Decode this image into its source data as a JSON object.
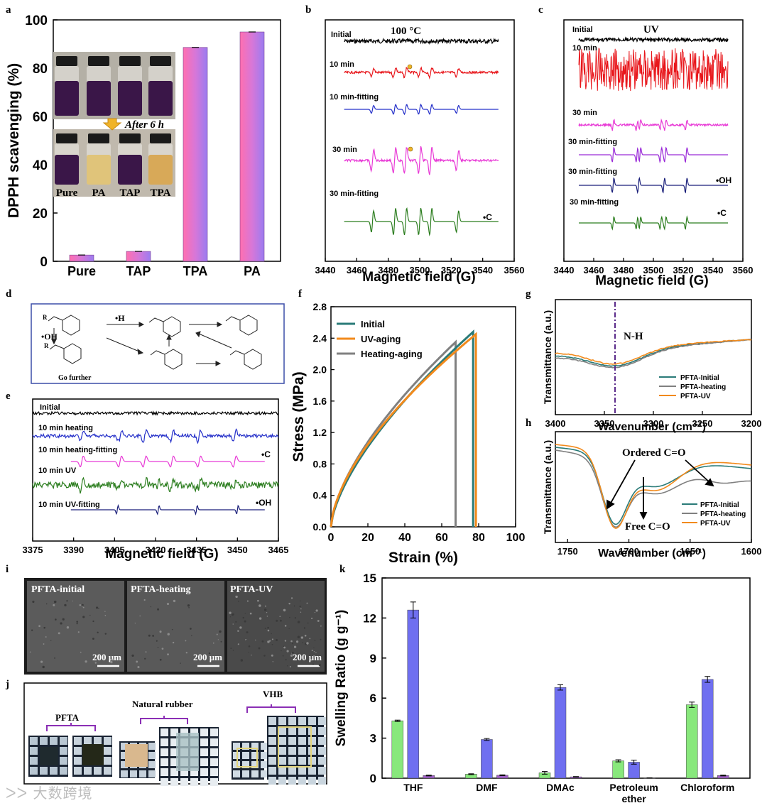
{
  "colors": {
    "bar_gradient_top": "#9b7cf0",
    "bar_gradient_bottom": "#ff6fb0",
    "black": "#000000",
    "red": "#e8161b",
    "blue": "#2530c9",
    "magenta": "#e83ad6",
    "green": "#2b7d1e",
    "purple": "#9a2bd8",
    "navy": "#1a1f7a",
    "teal": "#2a7b78",
    "orange": "#f28a1c",
    "gray": "#808080",
    "k_green": "#88e87c",
    "k_blue": "#6f6ff0",
    "k_purple": "#a060c8",
    "scheme_border": "#3b4ea8",
    "frame_purple": "#8b2fb5"
  },
  "chart_data": [
    {
      "panel": "a",
      "type": "bar",
      "categories": [
        "Pure",
        "TAP",
        "TPA",
        "PA"
      ],
      "values": [
        2.6,
        4.1,
        88.6,
        95.0
      ],
      "ylabel": "DPPH scavenging (%)",
      "ylim": [
        0,
        100
      ],
      "yticks": [
        0,
        20,
        40,
        60,
        80,
        100
      ],
      "inset": {
        "caption": "After 6 h",
        "vial_labels": [
          "Pure",
          "PA",
          "TAP",
          "TPA"
        ]
      }
    },
    {
      "panel": "b",
      "type": "line",
      "title": "100 °C",
      "xlabel": "Magnetic field (G)",
      "xlim": [
        3440,
        3560
      ],
      "xticks": [
        3440,
        3460,
        3480,
        3500,
        3520,
        3540,
        3560
      ],
      "series": [
        {
          "name": "Initial",
          "color": "#000000"
        },
        {
          "name": "10 min",
          "color": "#e8161b"
        },
        {
          "name": "10 min-fitting",
          "color": "#2530c9"
        },
        {
          "name": "30 min",
          "color": "#e83ad6"
        },
        {
          "name": "30 min-fitting",
          "color": "#2b7d1e"
        }
      ],
      "annotation": "•C"
    },
    {
      "panel": "c",
      "type": "line",
      "title": "UV",
      "xlabel": "Magnetic field (G)",
      "xlim": [
        3440,
        3560
      ],
      "xticks": [
        3440,
        3460,
        3480,
        3500,
        3520,
        3540,
        3560
      ],
      "series": [
        {
          "name": "Initial",
          "color": "#000000"
        },
        {
          "name": "10 min",
          "color": "#e8161b"
        },
        {
          "name": "30 min",
          "color": "#e83ad6"
        },
        {
          "name": "30 min-fitting",
          "color": "#9a2bd8"
        },
        {
          "name": "30 min-fitting",
          "color": "#1a1f7a"
        },
        {
          "name": "30 min-fitting",
          "color": "#2b7d1e"
        }
      ],
      "annotations": [
        "•OH",
        "•C"
      ]
    },
    {
      "panel": "e",
      "type": "line",
      "xlabel": "Magnetic field (G)",
      "xlim": [
        3375,
        3465
      ],
      "xticks": [
        3375,
        3390,
        3405,
        3420,
        3435,
        3450,
        3465
      ],
      "series": [
        {
          "name": "Initial",
          "color": "#000000"
        },
        {
          "name": "10 min heating",
          "color": "#2530c9"
        },
        {
          "name": "10 min heating-fitting",
          "color": "#e83ad6"
        },
        {
          "name": "10 min UV",
          "color": "#2b7d1e"
        },
        {
          "name": "10 min UV-fitting",
          "color": "#1a1f7a"
        }
      ],
      "annotations": [
        "•C",
        "•OH"
      ]
    },
    {
      "panel": "f",
      "type": "line",
      "xlabel": "Strain (%)",
      "ylabel": "Stress (MPa)",
      "xlim": [
        0,
        100
      ],
      "ylim": [
        0,
        2.8
      ],
      "xticks": [
        0,
        20,
        40,
        60,
        80,
        100
      ],
      "yticks": [
        0.0,
        0.4,
        0.8,
        1.2,
        1.6,
        2.0,
        2.4,
        2.8
      ],
      "series": [
        {
          "name": "Initial",
          "color": "#2a7b78",
          "break_strain": 77,
          "break_stress": 2.48
        },
        {
          "name": "UV-aging",
          "color": "#f28a1c",
          "break_strain": 78.5,
          "break_stress": 2.45
        },
        {
          "name": "Heating-aging",
          "color": "#808080",
          "break_strain": 67.5,
          "break_stress": 2.35
        }
      ]
    },
    {
      "panel": "g",
      "type": "line",
      "xlabel": "Wavenumber (cm⁻¹)",
      "ylabel": "Transmittance (a.u.)",
      "xlim": [
        3400,
        3200
      ],
      "xticks": [
        3400,
        3350,
        3300,
        3250,
        3200
      ],
      "marker_x": 3338,
      "marker_label": "N-H",
      "series": [
        {
          "name": "PFTA-Initial",
          "color": "#2a7b78"
        },
        {
          "name": "PFTA-heating",
          "color": "#808080"
        },
        {
          "name": "PFTA-UV",
          "color": "#f28a1c"
        }
      ]
    },
    {
      "panel": "h",
      "type": "line",
      "xlabel": "Wavenumber (cm⁻¹)",
      "ylabel": "Transmittance (a.u.)",
      "xlim": [
        1760,
        1600
      ],
      "xticks": [
        1750,
        1700,
        1650,
        1600
      ],
      "annotations": [
        "Ordered C=O",
        "Free C=O"
      ],
      "series": [
        {
          "name": "PFTA-Initial",
          "color": "#2a7b78"
        },
        {
          "name": "PFTA-heating",
          "color": "#808080"
        },
        {
          "name": "PFTA-UV",
          "color": "#f28a1c"
        }
      ]
    },
    {
      "panel": "k",
      "type": "bar",
      "categories": [
        "THF",
        "DMF",
        "DMAc",
        "Petroleum ether",
        "Chloroform"
      ],
      "ylabel": "Swelling Ratio (g g⁻¹)",
      "ylim": [
        0,
        15
      ],
      "yticks": [
        0,
        3,
        6,
        9,
        12,
        15
      ],
      "series": [
        {
          "name": "PFTA",
          "color": "#88e87c",
          "values": [
            4.3,
            0.3,
            0.4,
            1.3,
            5.5
          ],
          "errors": [
            0.05,
            0.03,
            0.1,
            0.08,
            0.2
          ]
        },
        {
          "name": "Natural rubber",
          "color": "#6f6ff0",
          "values": [
            12.6,
            2.9,
            6.8,
            1.2,
            7.4
          ],
          "errors": [
            0.6,
            0.07,
            0.2,
            0.15,
            0.22
          ]
        },
        {
          "name": "VHB",
          "color": "#a060c8",
          "values": [
            0.2,
            0.22,
            0.1,
            0.02,
            0.2
          ],
          "errors": [
            0.03,
            0.03,
            0.02,
            0.01,
            0.03
          ]
        }
      ]
    }
  ],
  "panels": {
    "a": "a",
    "b": "b",
    "c": "c",
    "d": "d",
    "e": "e",
    "f": "f",
    "g": "g",
    "h": "h",
    "i": "i",
    "j": "j",
    "k": "k"
  },
  "texts": {
    "a_inset_caption": "After 6 h",
    "a_vial_pure": "Pure",
    "a_vial_pa": "PA",
    "a_vial_tap": "TAP",
    "a_vial_tpa": "TPA",
    "b_title": "100 °C",
    "b_initial": "Initial",
    "b_10min": "10 min",
    "b_10fit": "10 min-fitting",
    "b_30min": "30 min",
    "b_30fit": "30 min-fitting",
    "b_annot": "•C",
    "c_title": "UV",
    "c_initial": "Initial",
    "c_10min": "10 min",
    "c_30min": "30 min",
    "c_30fit1": "30 min-fitting",
    "c_30fit2": "30 min-fitting",
    "c_30fit3": "30 min-fitting",
    "c_oh": "•OH",
    "c_c": "•C",
    "d_h": "•H",
    "d_oh": "•OH",
    "d_go": "Go further",
    "d_r": "R",
    "e_initial": "Initial",
    "e_heat": "10 min heating",
    "e_heatfit": "10 min heating-fitting",
    "e_uv": "10 min UV",
    "e_uvfit": "10 min UV-fitting",
    "e_c": "•C",
    "e_oh": "•OH",
    "f_leg_initial": "Initial",
    "f_leg_uv": "UV-aging",
    "f_leg_heat": "Heating-aging",
    "g_nh": "N-H",
    "gh_leg_initial": "PFTA-Initial",
    "gh_leg_heat": "PFTA-heating",
    "gh_leg_uv": "PFTA-UV",
    "h_ordered": "Ordered C=O",
    "h_free": "Free C=O",
    "i_initial": "PFTA-initial",
    "i_heating": "PFTA-heating",
    "i_uv": "PFTA-UV",
    "i_scale": "200 μm",
    "j_pfta": "PFTA",
    "j_rubber": "Natural rubber",
    "j_vhb": "VHB",
    "watermark": "大数跨境"
  }
}
